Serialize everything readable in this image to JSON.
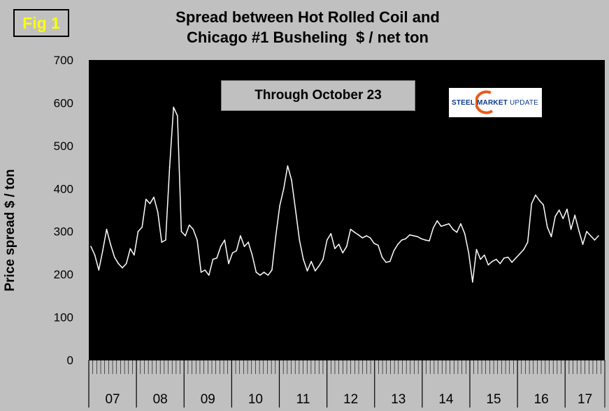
{
  "badge": "Fig 1",
  "title_line1": "Spread between Hot Rolled Coil and",
  "title_line2": "Chicago #1 Busheling  $ / net ton",
  "note": "Through October 23",
  "logo": {
    "word1": "STEEL MARKET",
    "word2": "UPDATE",
    "accent": "#e85a1a",
    "brand": "#0b3a8c"
  },
  "colors": {
    "plot_bg": "#000000",
    "line": "#ffffff",
    "page_bg": "#c0c0c0"
  },
  "chart_data": {
    "type": "line",
    "title": "Spread between Hot Rolled Coil and Chicago #1 Busheling  $ / net ton",
    "ylabel": "Price spread $ / ton",
    "xlabel": "",
    "ylim": [
      0,
      700
    ],
    "yticks": [
      0,
      100,
      200,
      300,
      400,
      500,
      600,
      700
    ],
    "year_labels": [
      "07",
      "08",
      "09",
      "10",
      "11",
      "12",
      "13",
      "14",
      "15",
      "16",
      "17"
    ],
    "x_start": "2007-01",
    "x_end": "2017-10",
    "series": [
      {
        "values": [
          265,
          245,
          210,
          255,
          305,
          270,
          240,
          225,
          215,
          225,
          260,
          245,
          300,
          310,
          375,
          365,
          380,
          345,
          275,
          280,
          450,
          590,
          570,
          300,
          290,
          315,
          305,
          280,
          205,
          210,
          198,
          235,
          238,
          265,
          280,
          225,
          250,
          255,
          290,
          265,
          275,
          245,
          205,
          198,
          205,
          198,
          210,
          290,
          360,
          400,
          453,
          420,
          350,
          280,
          235,
          208,
          230,
          208,
          220,
          235,
          280,
          295,
          260,
          270,
          250,
          265,
          305,
          298,
          292,
          285,
          290,
          285,
          272,
          268,
          240,
          228,
          230,
          255,
          270,
          280,
          283,
          292,
          290,
          288,
          283,
          280,
          278,
          308,
          325,
          312,
          315,
          318,
          305,
          298,
          318,
          295,
          250,
          182,
          258,
          235,
          245,
          222,
          230,
          235,
          225,
          238,
          240,
          228,
          238,
          248,
          258,
          275,
          365,
          385,
          372,
          362,
          310,
          288,
          335,
          350,
          330,
          352,
          305,
          338,
          302,
          270,
          300,
          290,
          280,
          290
        ]
      }
    ]
  }
}
